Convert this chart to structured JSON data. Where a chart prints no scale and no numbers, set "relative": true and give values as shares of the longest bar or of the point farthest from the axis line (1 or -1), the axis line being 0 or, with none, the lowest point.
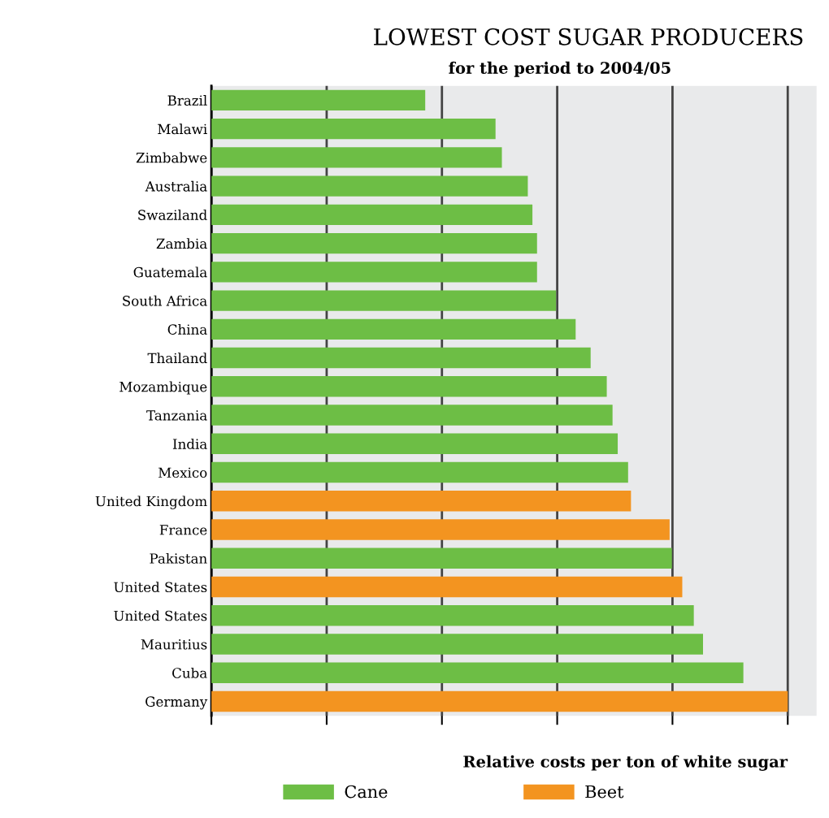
{
  "chart_data": {
    "type": "bar",
    "orientation": "horizontal",
    "relative": true,
    "title": "LOWEST COST SUGAR PRODUCERS",
    "subtitle": "for the period to 2004/05",
    "xlabel": "Relative costs per ton of white sugar",
    "categories": [
      "Brazil",
      "Malawi",
      "Zimbabwe",
      "Australia",
      "Swaziland",
      "Zambia",
      "Guatemala",
      "South Africa",
      "China",
      "Thailand",
      "Mozambique",
      "Tanzania",
      "India",
      "Mexico",
      "United Kingdom",
      "France",
      "Pakistan",
      "United States",
      "United States",
      "Mauritius",
      "Cuba",
      "Germany"
    ],
    "series": [
      {
        "name": "Cane",
        "color": "#6dbe45",
        "values": [
          0.371,
          0.493,
          0.504,
          0.549,
          0.557,
          0.565,
          0.565,
          0.598,
          0.632,
          0.658,
          0.686,
          0.696,
          0.705,
          0.723,
          null,
          null,
          0.799,
          null,
          0.837,
          0.853,
          0.923,
          null
        ]
      },
      {
        "name": "Beet",
        "color": "#f39420",
        "values": [
          null,
          null,
          null,
          null,
          null,
          null,
          null,
          null,
          null,
          null,
          null,
          null,
          null,
          null,
          0.728,
          0.795,
          null,
          0.817,
          null,
          null,
          null,
          1
        ]
      }
    ],
    "grid": "x",
    "legend": "bottom"
  }
}
